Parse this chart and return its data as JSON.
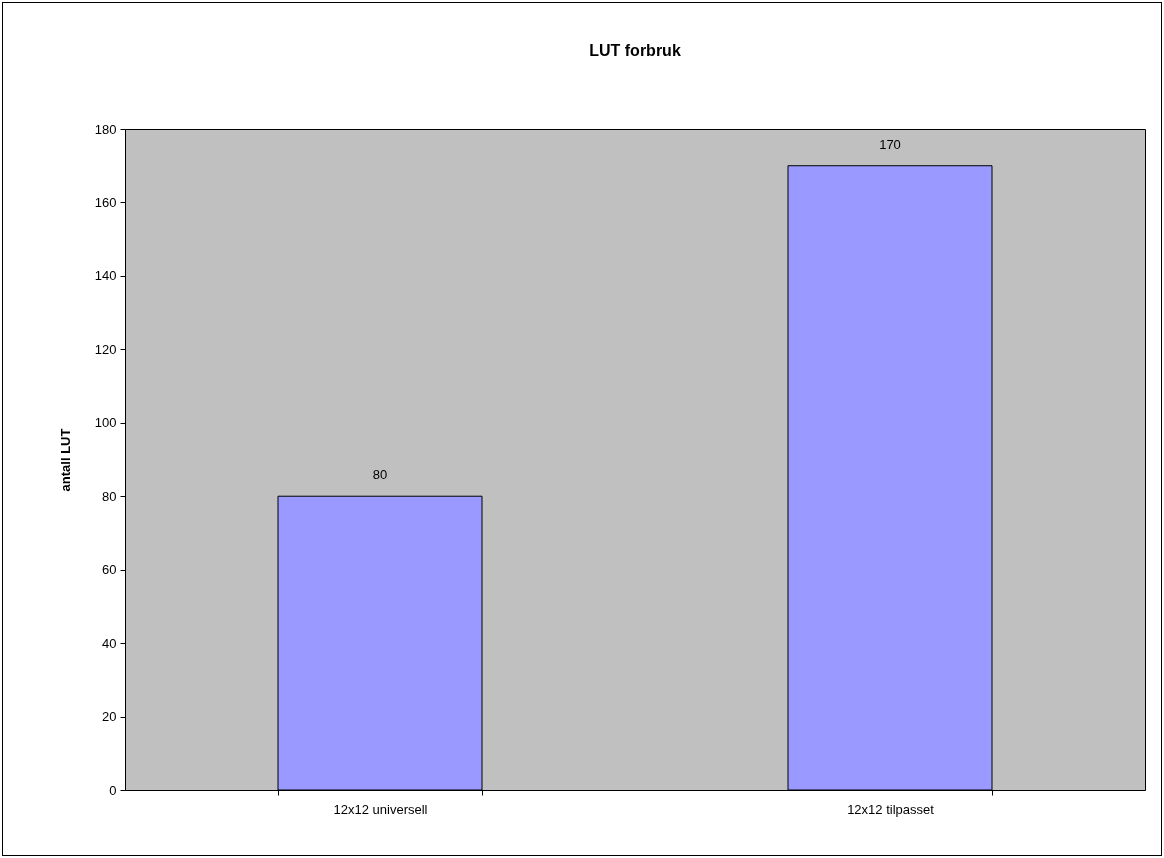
{
  "chart_data": {
    "type": "bar",
    "title": "LUT forbruk",
    "ylabel": "antall LUT",
    "categories": [
      "12x12 universell",
      "12x12 tilpasset"
    ],
    "values": [
      80,
      170
    ],
    "color": "#9999ff",
    "ylim": [
      0,
      180
    ],
    "yticks": [
      0,
      20,
      40,
      60,
      80,
      100,
      120,
      140,
      160,
      180
    ],
    "data_labels": true,
    "grid": false
  }
}
